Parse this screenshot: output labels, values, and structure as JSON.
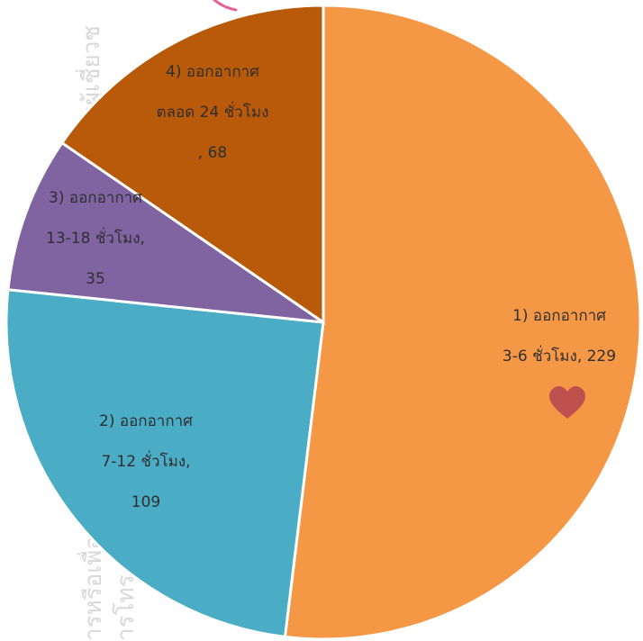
{
  "chart_data": {
    "type": "pie",
    "categories": [
      "1) ออกอากาศ 3-6 ชั่วโมง",
      "2) ออกอากาศ 7-12 ชั่วโมง",
      "3) ออกอากาศ 13-18 ชั่วโมง",
      "4) ออกอากาศ ตลอด 24 ชั่วโมง"
    ],
    "values": [
      229,
      109,
      35,
      68
    ],
    "slices": [
      {
        "label_lines": [
          "1) ออกอากาศ",
          "3-6 ชั่วโมง, 229"
        ],
        "value": 229,
        "color": "#F59845"
      },
      {
        "label_lines": [
          "2) ออกอากาศ",
          "7-12 ชั่วโมง,",
          "109"
        ],
        "value": 109,
        "color": "#4AACC5"
      },
      {
        "label_lines": [
          "3) ออกอากาศ",
          "13-18 ชั่วโมง,",
          "35"
        ],
        "value": 35,
        "color": "#8064A2"
      },
      {
        "label_lines": [
          "4) ออกอากาศ",
          "ตลอด 24 ชั่วโมง",
          ", 68"
        ],
        "value": 68,
        "color": "#B85A0A"
      }
    ],
    "slice_border_color": "#ffffff",
    "decorations": {
      "heart_color": "#C0504D",
      "swash_color": "#E8609A"
    }
  }
}
